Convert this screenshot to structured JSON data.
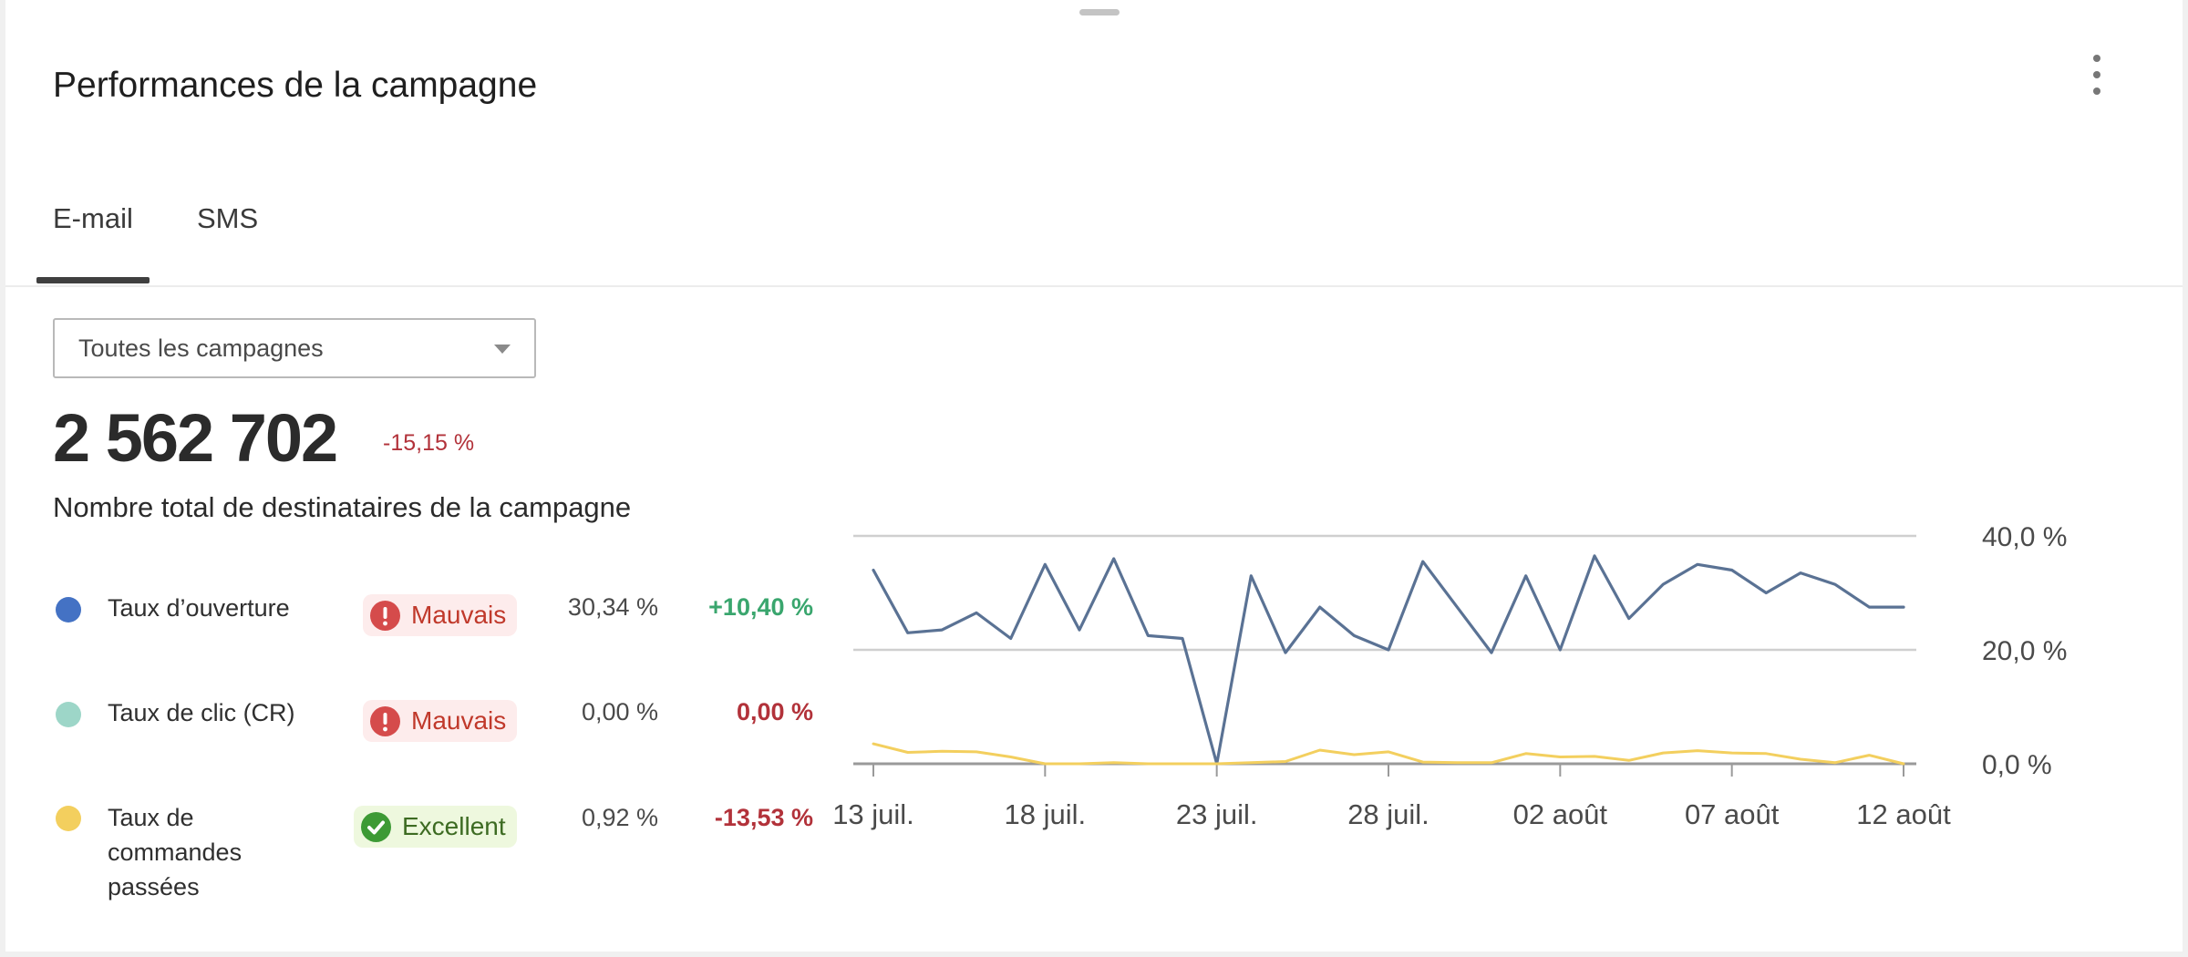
{
  "card": {
    "title": "Performances de la campagne"
  },
  "tabs": [
    {
      "label": "E-mail",
      "active": true
    },
    {
      "label": "SMS",
      "active": false
    }
  ],
  "filter": {
    "selected": "Toutes les campagnes"
  },
  "summary": {
    "total": "2 562 702",
    "change": "-15,15 %",
    "label": "Nombre total de destinataires de la campagne"
  },
  "metrics": [
    {
      "label": "Taux d’ouverture",
      "color": "#4472c4",
      "rating": "Mauvais",
      "rating_status": "bad",
      "value": "30,34 %",
      "change": "+10,40 %",
      "change_trend": "positive"
    },
    {
      "label": "Taux de clic (CR)",
      "color": "#9dd6c8",
      "rating": "Mauvais",
      "rating_status": "bad",
      "value": "0,00 %",
      "change": "0,00 %",
      "change_trend": "negative"
    },
    {
      "label": "Taux de commandes passées",
      "color": "#f3cf5e",
      "rating": "Excellent",
      "rating_status": "good",
      "value": "0,92 %",
      "change": "-13,53 %",
      "change_trend": "negative"
    }
  ],
  "chart_data": {
    "type": "line",
    "x": [
      "13 juil.",
      "14 juil.",
      "15 juil.",
      "16 juil.",
      "17 juil.",
      "18 juil.",
      "19 juil.",
      "20 juil.",
      "21 juil.",
      "22 juil.",
      "23 juil.",
      "24 juil.",
      "25 juil.",
      "26 juil.",
      "27 juil.",
      "28 juil.",
      "29 juil.",
      "30 juil.",
      "31 juil.",
      "01 août",
      "02 août",
      "03 août",
      "04 août",
      "05 août",
      "06 août",
      "07 août",
      "08 août",
      "09 août",
      "10 août",
      "11 août",
      "12 août"
    ],
    "series": [
      {
        "color": "#5a7294",
        "values": [
          34,
          23,
          23.5,
          26.5,
          22,
          35,
          23.5,
          36,
          22.5,
          22,
          0,
          33,
          19.5,
          27.5,
          22.5,
          20,
          35.5,
          27.5,
          19.5,
          33,
          20,
          36.5,
          25.5,
          31.5,
          35,
          34,
          30,
          33.5,
          31.5,
          27.5,
          27.5
        ]
      },
      {
        "color": "#f3cf5e",
        "values": [
          3.5,
          2,
          2.2,
          2.1,
          1.2,
          0,
          0,
          0.2,
          0,
          0,
          0,
          0.2,
          0.4,
          2.4,
          1.6,
          2.1,
          0.3,
          0.2,
          0.2,
          1.8,
          1.2,
          1.3,
          0.6,
          1.9,
          2.3,
          1.9,
          1.8,
          0.8,
          0.2,
          1.5,
          0
        ]
      }
    ],
    "x_tick_labels": [
      "13 juil.",
      "18 juil.",
      "23 juil.",
      "28 juil.",
      "02 août",
      "07 août",
      "12 août"
    ],
    "y_tick_labels": [
      "0,0 %",
      "20,0 %",
      "40,0 %"
    ],
    "ylim": [
      0,
      40
    ],
    "grid": true,
    "y_axis_side": "right"
  }
}
